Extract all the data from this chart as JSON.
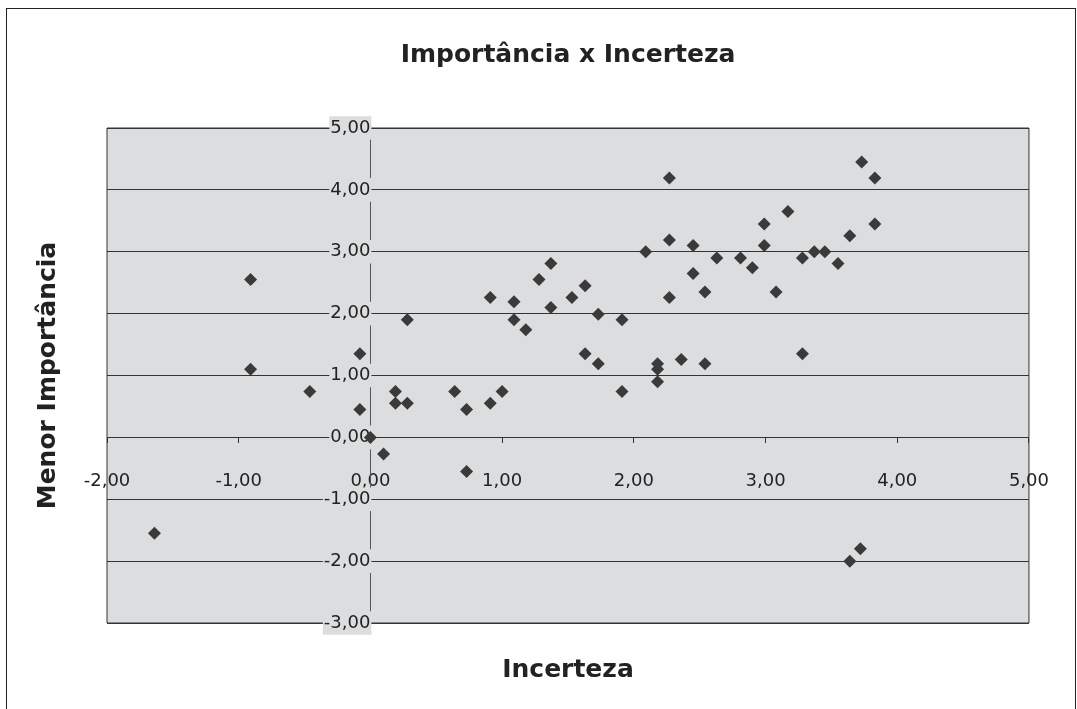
{
  "chart_data": {
    "type": "scatter",
    "title": "Importância x Incerteza",
    "xlabel": "Incerteza",
    "ylabel": "Menor Importância",
    "x": [
      -1.64,
      -0.91,
      -0.91,
      -0.46,
      -0.08,
      -0.08,
      0,
      0.1,
      0.28,
      0.19,
      0.19,
      0.28,
      0.64,
      0.73,
      0.73,
      0.91,
      1.0,
      0.91,
      1.09,
      1.09,
      1.18,
      1.28,
      1.37,
      1.37,
      1.53,
      1.63,
      1.63,
      1.73,
      1.73,
      1.91,
      1.91,
      2.09,
      2.27,
      2.27,
      2.27,
      2.18,
      2.18,
      2.18,
      2.36,
      2.45,
      2.45,
      2.54,
      2.54,
      2.63,
      2.81,
      2.9,
      2.99,
      2.99,
      3.08,
      3.17,
      3.28,
      3.28,
      3.37,
      3.45,
      3.55,
      3.64,
      3.73,
      3.83,
      3.83,
      3.64,
      3.72
    ],
    "series": [
      {
        "color": "#3a3a3a",
        "values": [
          -1.55,
          2.55,
          1.1,
          0.74,
          1.35,
          0.45,
          0,
          -0.27,
          1.9,
          0.74,
          0.55,
          0.55,
          0.74,
          0.45,
          -0.55,
          0.55,
          0.74,
          2.26,
          2.19,
          1.9,
          1.74,
          2.55,
          2.81,
          2.1,
          2.26,
          2.45,
          1.35,
          1.99,
          1.19,
          1.9,
          0.74,
          3.0,
          4.19,
          3.19,
          2.26,
          1.19,
          1.1,
          0.9,
          1.26,
          3.1,
          2.65,
          2.35,
          1.19,
          2.9,
          2.9,
          2.74,
          3.45,
          3.1,
          2.35,
          3.65,
          2.9,
          1.35,
          3.0,
          3.0,
          2.81,
          3.26,
          4.45,
          4.19,
          3.45,
          -2.0,
          -1.8
        ]
      }
    ],
    "xlim": [
      -2,
      5
    ],
    "ylim": [
      -3,
      5
    ],
    "xticks": [
      {
        "value": -2,
        "label": "-2,00"
      },
      {
        "value": -1,
        "label": "-1,00"
      },
      {
        "value": 0,
        "label": "0,00"
      },
      {
        "value": 1,
        "label": "1,00"
      },
      {
        "value": 2,
        "label": "2,00"
      },
      {
        "value": 3,
        "label": "3,00"
      },
      {
        "value": 4,
        "label": "4,00"
      },
      {
        "value": 5,
        "label": "5,00"
      }
    ],
    "yticks": [
      {
        "value": -3,
        "label": "-3,00"
      },
      {
        "value": -2,
        "label": "-2,00"
      },
      {
        "value": -1,
        "label": "-1,00"
      },
      {
        "value": 0,
        "label": "0,00"
      },
      {
        "value": 1,
        "label": "1,00"
      },
      {
        "value": 2,
        "label": "2,00"
      },
      {
        "value": 3,
        "label": "3,00"
      },
      {
        "value": 4,
        "label": "4,00"
      },
      {
        "value": 5,
        "label": "5,00"
      }
    ],
    "grid": "y",
    "marker": "diamond"
  }
}
